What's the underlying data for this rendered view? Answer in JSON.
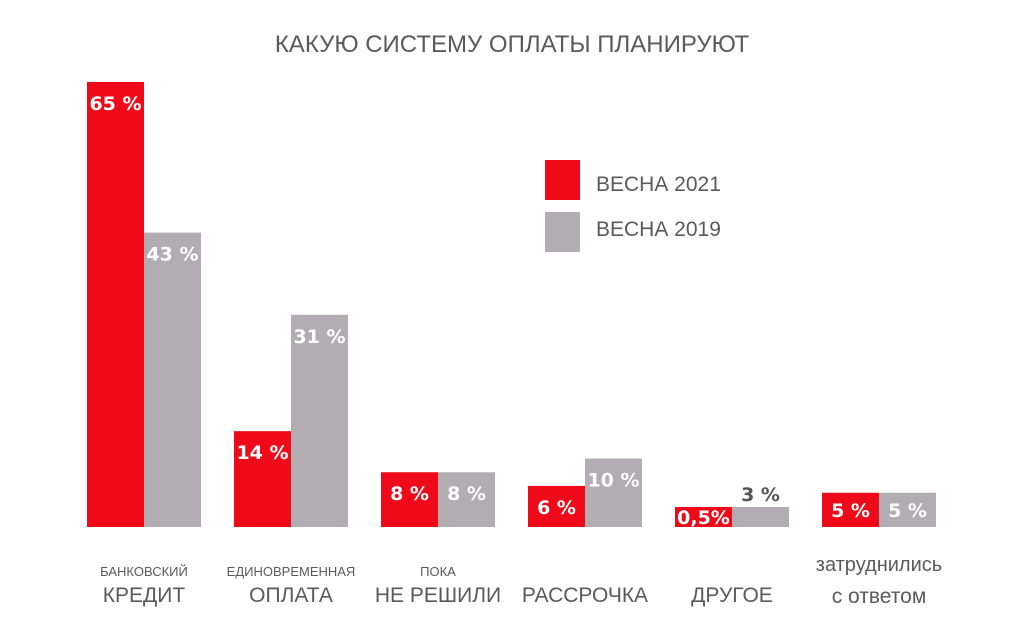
{
  "chart_data": {
    "type": "bar",
    "title": "КАКУЮ СИСТЕМУ ОПЛАТЫ ПЛАНИРУЮТ",
    "categories": [
      {
        "line1": "БАНКОВСКИЙ",
        "line2": "КРЕДИТ"
      },
      {
        "line1": "ЕДИНОВРЕМЕННАЯ",
        "line2": "ОПЛАТА"
      },
      {
        "line1": "ПОКА",
        "line2": "НЕ РЕШИЛИ"
      },
      {
        "line1": "",
        "line2": "РАССРОЧКА"
      },
      {
        "line1": "",
        "line2": "ДРУГОЕ"
      },
      {
        "line1": "затруднились",
        "line2": "с ответом"
      }
    ],
    "series": [
      {
        "name": "ВЕСНА 2021",
        "color": "#ee0a18",
        "values": [
          65,
          14,
          8,
          6,
          0.5,
          5
        ],
        "labels": [
          "65 %",
          "14 %",
          "8 %",
          "6 %",
          "0,5%",
          "5 %"
        ]
      },
      {
        "name": "ВЕСНА 2019",
        "color": "#b1adb3",
        "values": [
          43,
          31,
          8,
          10,
          3,
          5
        ],
        "labels": [
          "43 %",
          "31 %",
          "8 %",
          "10 %",
          "3 %",
          "5 %"
        ]
      }
    ],
    "legend_position": "top-right",
    "grid": false,
    "ylim": [
      0,
      65
    ]
  }
}
